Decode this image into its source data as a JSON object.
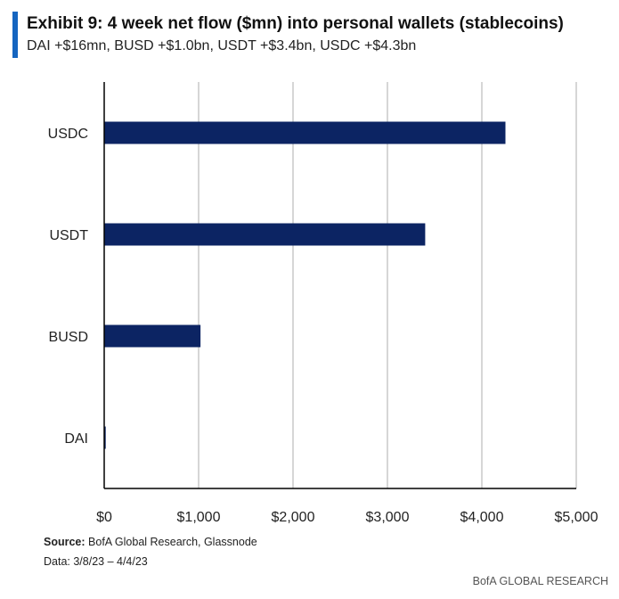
{
  "header": {
    "title": "Exhibit 9: 4 week net flow ($mn) into personal wallets (stablecoins)",
    "subtitle": "DAI +$16mn, BUSD +$1.0bn, USDT +$3.4bn, USDC +$4.3bn"
  },
  "footer": {
    "source_label": "Source:",
    "source_text": "BofA Global Research, Glassnode",
    "data_range": "Data: 3/8/23 – 4/4/23",
    "brand": "BofA GLOBAL RESEARCH"
  },
  "colors": {
    "bar": "#0c2463",
    "accent": "#1565c0",
    "grid": "#c8c8c8",
    "axis": "#000000"
  },
  "chart_data": {
    "type": "bar",
    "orientation": "horizontal",
    "categories": [
      "USDC",
      "USDT",
      "BUSD",
      "DAI"
    ],
    "values": [
      4250,
      3400,
      1020,
      16
    ],
    "xlim": [
      0,
      5000
    ],
    "xticks": [
      0,
      1000,
      2000,
      3000,
      4000,
      5000
    ],
    "xtick_labels": [
      "$0",
      "$1,000",
      "$2,000",
      "$3,000",
      "$4,000",
      "$5,000"
    ],
    "grid": true
  }
}
